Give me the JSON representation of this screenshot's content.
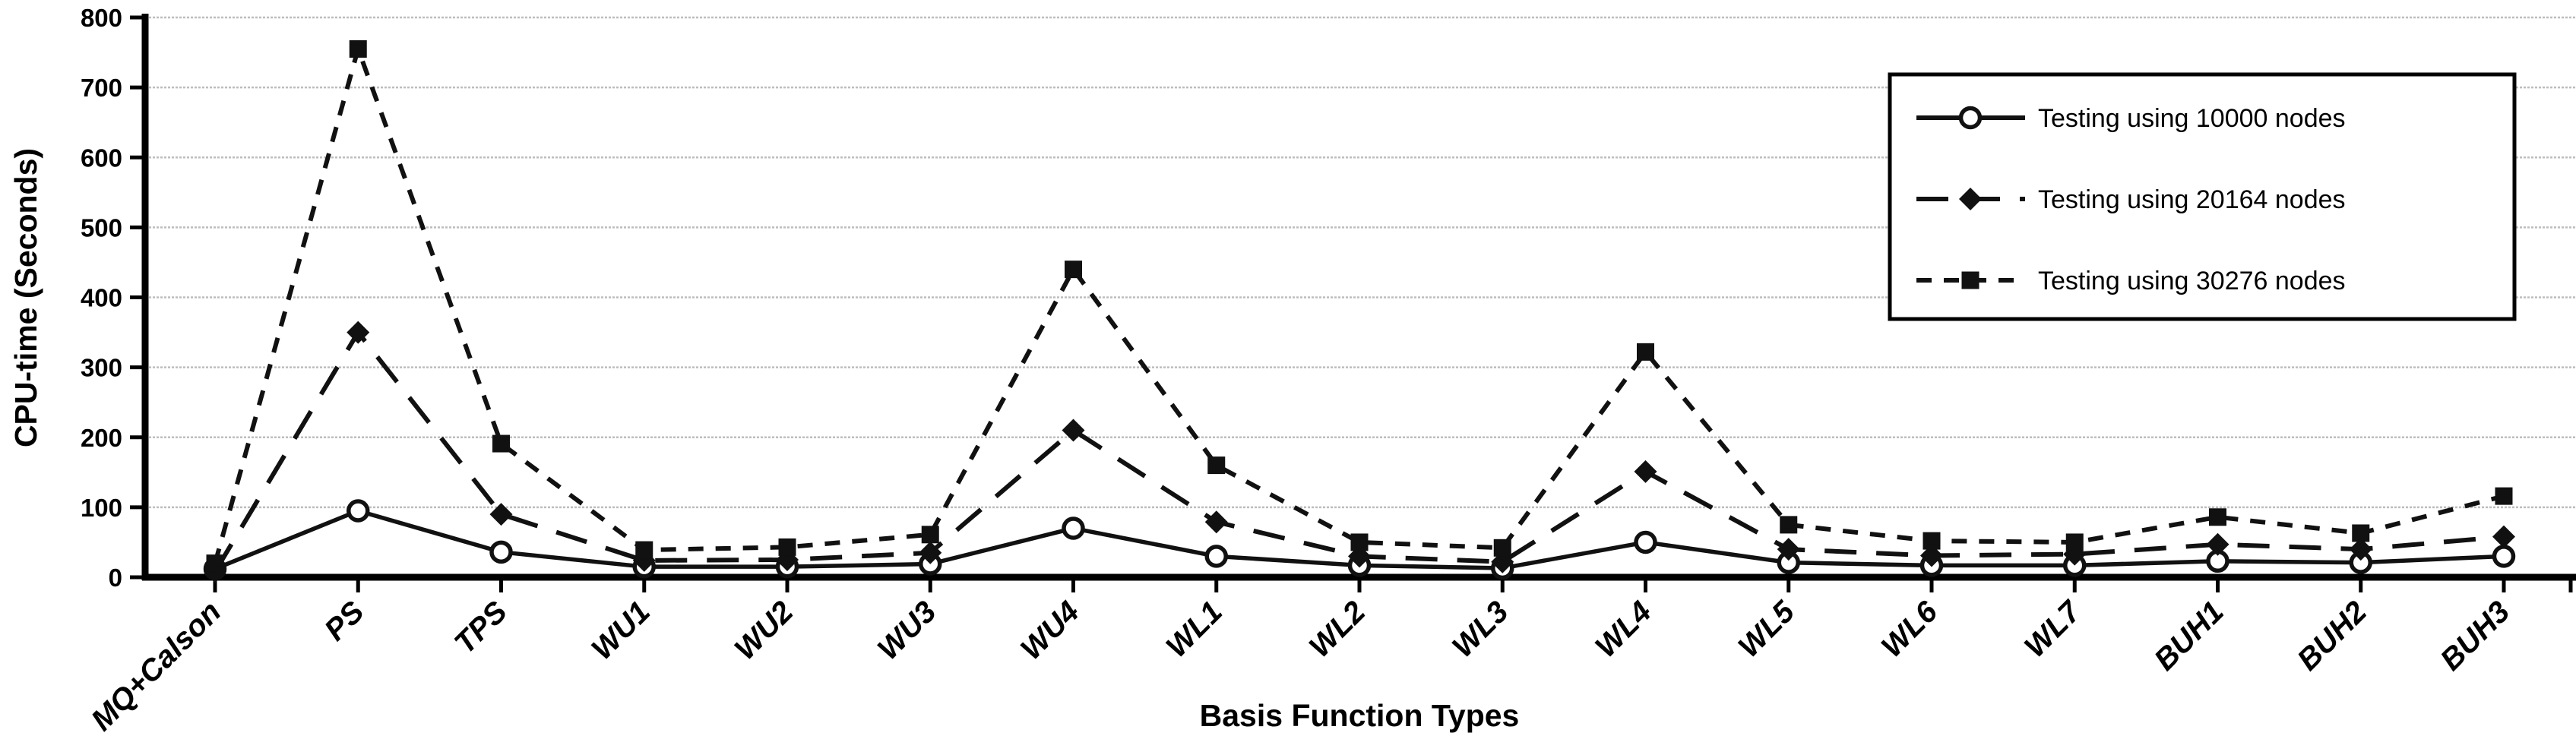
{
  "page": {
    "background": "#ffffff"
  },
  "chart_data": {
    "type": "line",
    "title": "",
    "xlabel": "Basis Function Types",
    "ylabel": "CPU-time (Seconds)",
    "ylim": [
      0,
      800
    ],
    "yticks": [
      0,
      100,
      200,
      300,
      400,
      500,
      600,
      700,
      800
    ],
    "grid": "horizontal",
    "legend_position": "top-right",
    "categories": [
      "MQ+Calson",
      "PS",
      "TPS",
      "WU1",
      "WU2",
      "WU3",
      "WU4",
      "WL1",
      "WL2",
      "WL3",
      "WL4",
      "WL5",
      "WL6",
      "WL7",
      "BUH1",
      "BUH2",
      "BUH3"
    ],
    "series": [
      {
        "name": "Testing using 10000 nodes",
        "line": "solid",
        "marker": "open-circle",
        "values": [
          12,
          95,
          36,
          15,
          15,
          19,
          70,
          30,
          17,
          13,
          50,
          21,
          17,
          17,
          23,
          21,
          30
        ]
      },
      {
        "name": "Testing using 20164 nodes",
        "line": "long-dash",
        "marker": "filled-diamond",
        "values": [
          8,
          350,
          90,
          24,
          25,
          35,
          210,
          79,
          30,
          22,
          151,
          40,
          31,
          33,
          47,
          40,
          58
        ]
      },
      {
        "name": "Testing using 30276 nodes",
        "line": "short-dash",
        "marker": "filled-square",
        "values": [
          20,
          755,
          191,
          39,
          43,
          61,
          440,
          160,
          50,
          42,
          322,
          75,
          52,
          50,
          86,
          63,
          116
        ]
      }
    ]
  },
  "colors": {
    "series": "#111111",
    "grid": "#bdbdbd",
    "axis": "#000000",
    "text": "#000000",
    "legend_border": "#000000",
    "legend_background": "#ffffff",
    "background": "#ffffff"
  }
}
